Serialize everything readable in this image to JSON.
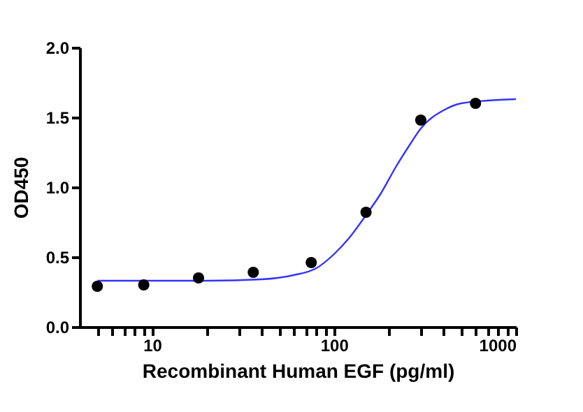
{
  "chart_data": {
    "type": "scatter",
    "xlabel": "Recombinant Human EGF (pg/ml)",
    "ylabel": "OD450",
    "log": "x",
    "grid": false,
    "legend": false,
    "xlim": [
      4,
      1000
    ],
    "xticks": [
      {
        "value": 5,
        "label": null
      },
      {
        "value": 6,
        "label": null
      },
      {
        "value": 7,
        "label": null
      },
      {
        "value": 8,
        "label": null
      },
      {
        "value": 9,
        "label": null
      },
      10,
      {
        "value": 20,
        "label": null
      },
      {
        "value": 30,
        "label": null
      },
      {
        "value": 40,
        "label": null
      },
      {
        "value": 50,
        "label": null
      },
      {
        "value": 60,
        "label": null
      },
      {
        "value": 70,
        "label": null
      },
      {
        "value": 80,
        "label": null
      },
      {
        "value": 90,
        "label": null
      },
      100,
      {
        "value": 200,
        "label": null
      },
      {
        "value": 300,
        "label": null
      },
      {
        "value": 400,
        "label": null
      },
      {
        "value": 500,
        "label": null
      },
      {
        "value": 600,
        "label": null
      },
      {
        "value": 700,
        "label": null
      },
      {
        "value": 800,
        "label": null
      },
      {
        "value": 900,
        "label": null
      },
      1000
    ],
    "ylim": [
      0,
      2
    ],
    "yticks": [
      {
        "value": 0,
        "label": "0.0"
      },
      {
        "value": 0.5,
        "label": "0.5"
      },
      {
        "value": 1,
        "label": "1.0"
      },
      {
        "value": 1.5,
        "label": "1.5"
      },
      {
        "value": 2,
        "label": "2.0"
      }
    ],
    "series": [
      {
        "type": "line",
        "color": "#3333ff",
        "marker": "none",
        "x": [
          5,
          10,
          20,
          40,
          60,
          80,
          100,
          120,
          150,
          180,
          220,
          260,
          300,
          400,
          500,
          700,
          1000
        ],
        "values": [
          0.33,
          0.33,
          0.33,
          0.34,
          0.37,
          0.42,
          0.52,
          0.63,
          0.8,
          0.95,
          1.15,
          1.3,
          1.42,
          1.55,
          1.6,
          1.62,
          1.63
        ]
      },
      {
        "color": "#000000",
        "marker": "circle",
        "x": [
          5,
          9,
          18,
          36,
          75,
          150,
          300,
          600
        ],
        "values": [
          0.29,
          0.3,
          0.35,
          0.39,
          0.46,
          0.82,
          1.48,
          1.6
        ]
      }
    ]
  }
}
